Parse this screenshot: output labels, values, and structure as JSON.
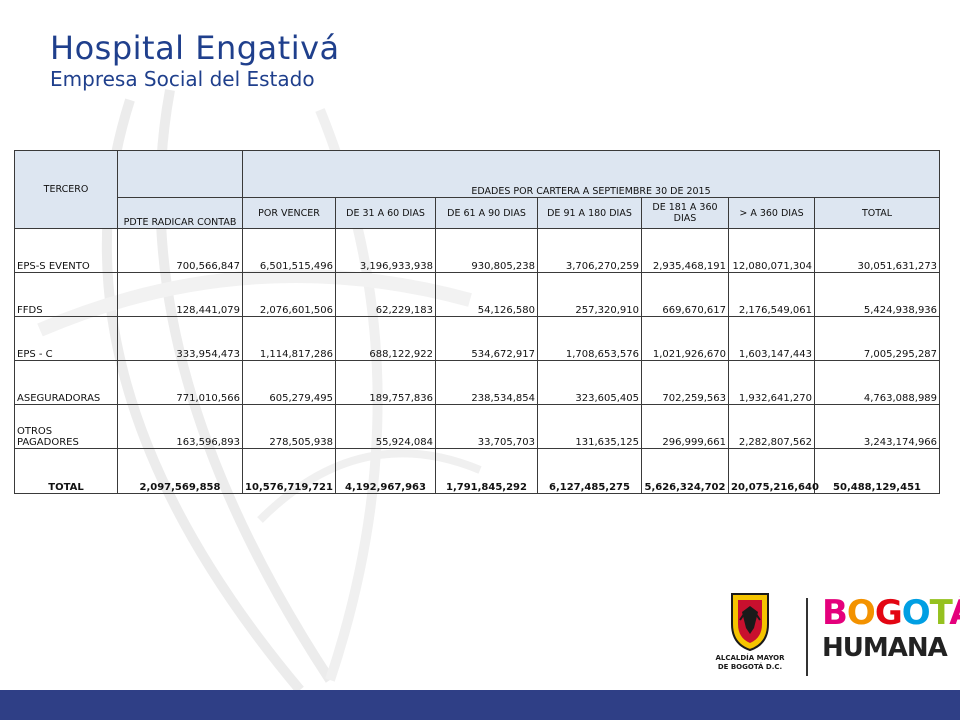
{
  "header": {
    "org_name": "Hospital Engativá",
    "org_subtitle": "Empresa Social del Estado"
  },
  "table": {
    "title": "EDADES POR CARTERA A SEPTIEMBRE 30 DE 2015",
    "columns": [
      "TERCERO",
      "PDTE RADICAR CONTAB",
      "POR VENCER",
      "DE 31 A 60 DIAS",
      "DE 61 A 90 DIAS",
      "DE 91 A 180 DIAS",
      "DE 181 A 360 DIAS",
      "> A 360 DIAS",
      "TOTAL"
    ],
    "rows": [
      [
        "EPS-S EVENTO",
        "700,566,847",
        "6,501,515,496",
        "3,196,933,938",
        "930,805,238",
        "3,706,270,259",
        "2,935,468,191",
        "12,080,071,304",
        "30,051,631,273"
      ],
      [
        "FFDS",
        "128,441,079",
        "2,076,601,506",
        "62,229,183",
        "54,126,580",
        "257,320,910",
        "669,670,617",
        "2,176,549,061",
        "5,424,938,936"
      ],
      [
        "EPS - C",
        "333,954,473",
        "1,114,817,286",
        "688,122,922",
        "534,672,917",
        "1,708,653,576",
        "1,021,926,670",
        "1,603,147,443",
        "7,005,295,287"
      ],
      [
        "ASEGURADORAS",
        "771,010,566",
        "605,279,495",
        "189,757,836",
        "238,534,854",
        "323,605,405",
        "702,259,563",
        "1,932,641,270",
        "4,763,088,989"
      ],
      [
        "OTROS PAGADORES",
        "163,596,893",
        "278,505,938",
        "55,924,084",
        "33,705,703",
        "131,635,125",
        "296,999,661",
        "2,282,807,562",
        "3,243,174,966"
      ]
    ],
    "total": [
      "TOTAL",
      "2,097,569,858",
      "10,576,719,721",
      "4,192,967,963",
      "1,791,845,292",
      "6,127,485,275",
      "5,626,324,702",
      "20,075,216,640",
      "50,488,129,451"
    ]
  },
  "footer": {
    "alcaldia_line1": "ALCALDÍA MAYOR",
    "alcaldia_line2": "DE BOGOTÁ D.C.",
    "bogota_letters": [
      {
        "char": "B",
        "color": "#e4007c"
      },
      {
        "char": "O",
        "color": "#f39200"
      },
      {
        "char": "G",
        "color": "#e30613"
      },
      {
        "char": "O",
        "color": "#009fe3"
      },
      {
        "char": "T",
        "color": "#95c11f"
      },
      {
        "char": "Á",
        "color": "#e4007c"
      }
    ],
    "humana": "HUMANA"
  },
  "colors": {
    "brand_blue": "#1f3f8c",
    "header_fill": "#dde6f1",
    "bottom_bar": "#2f3f86"
  }
}
